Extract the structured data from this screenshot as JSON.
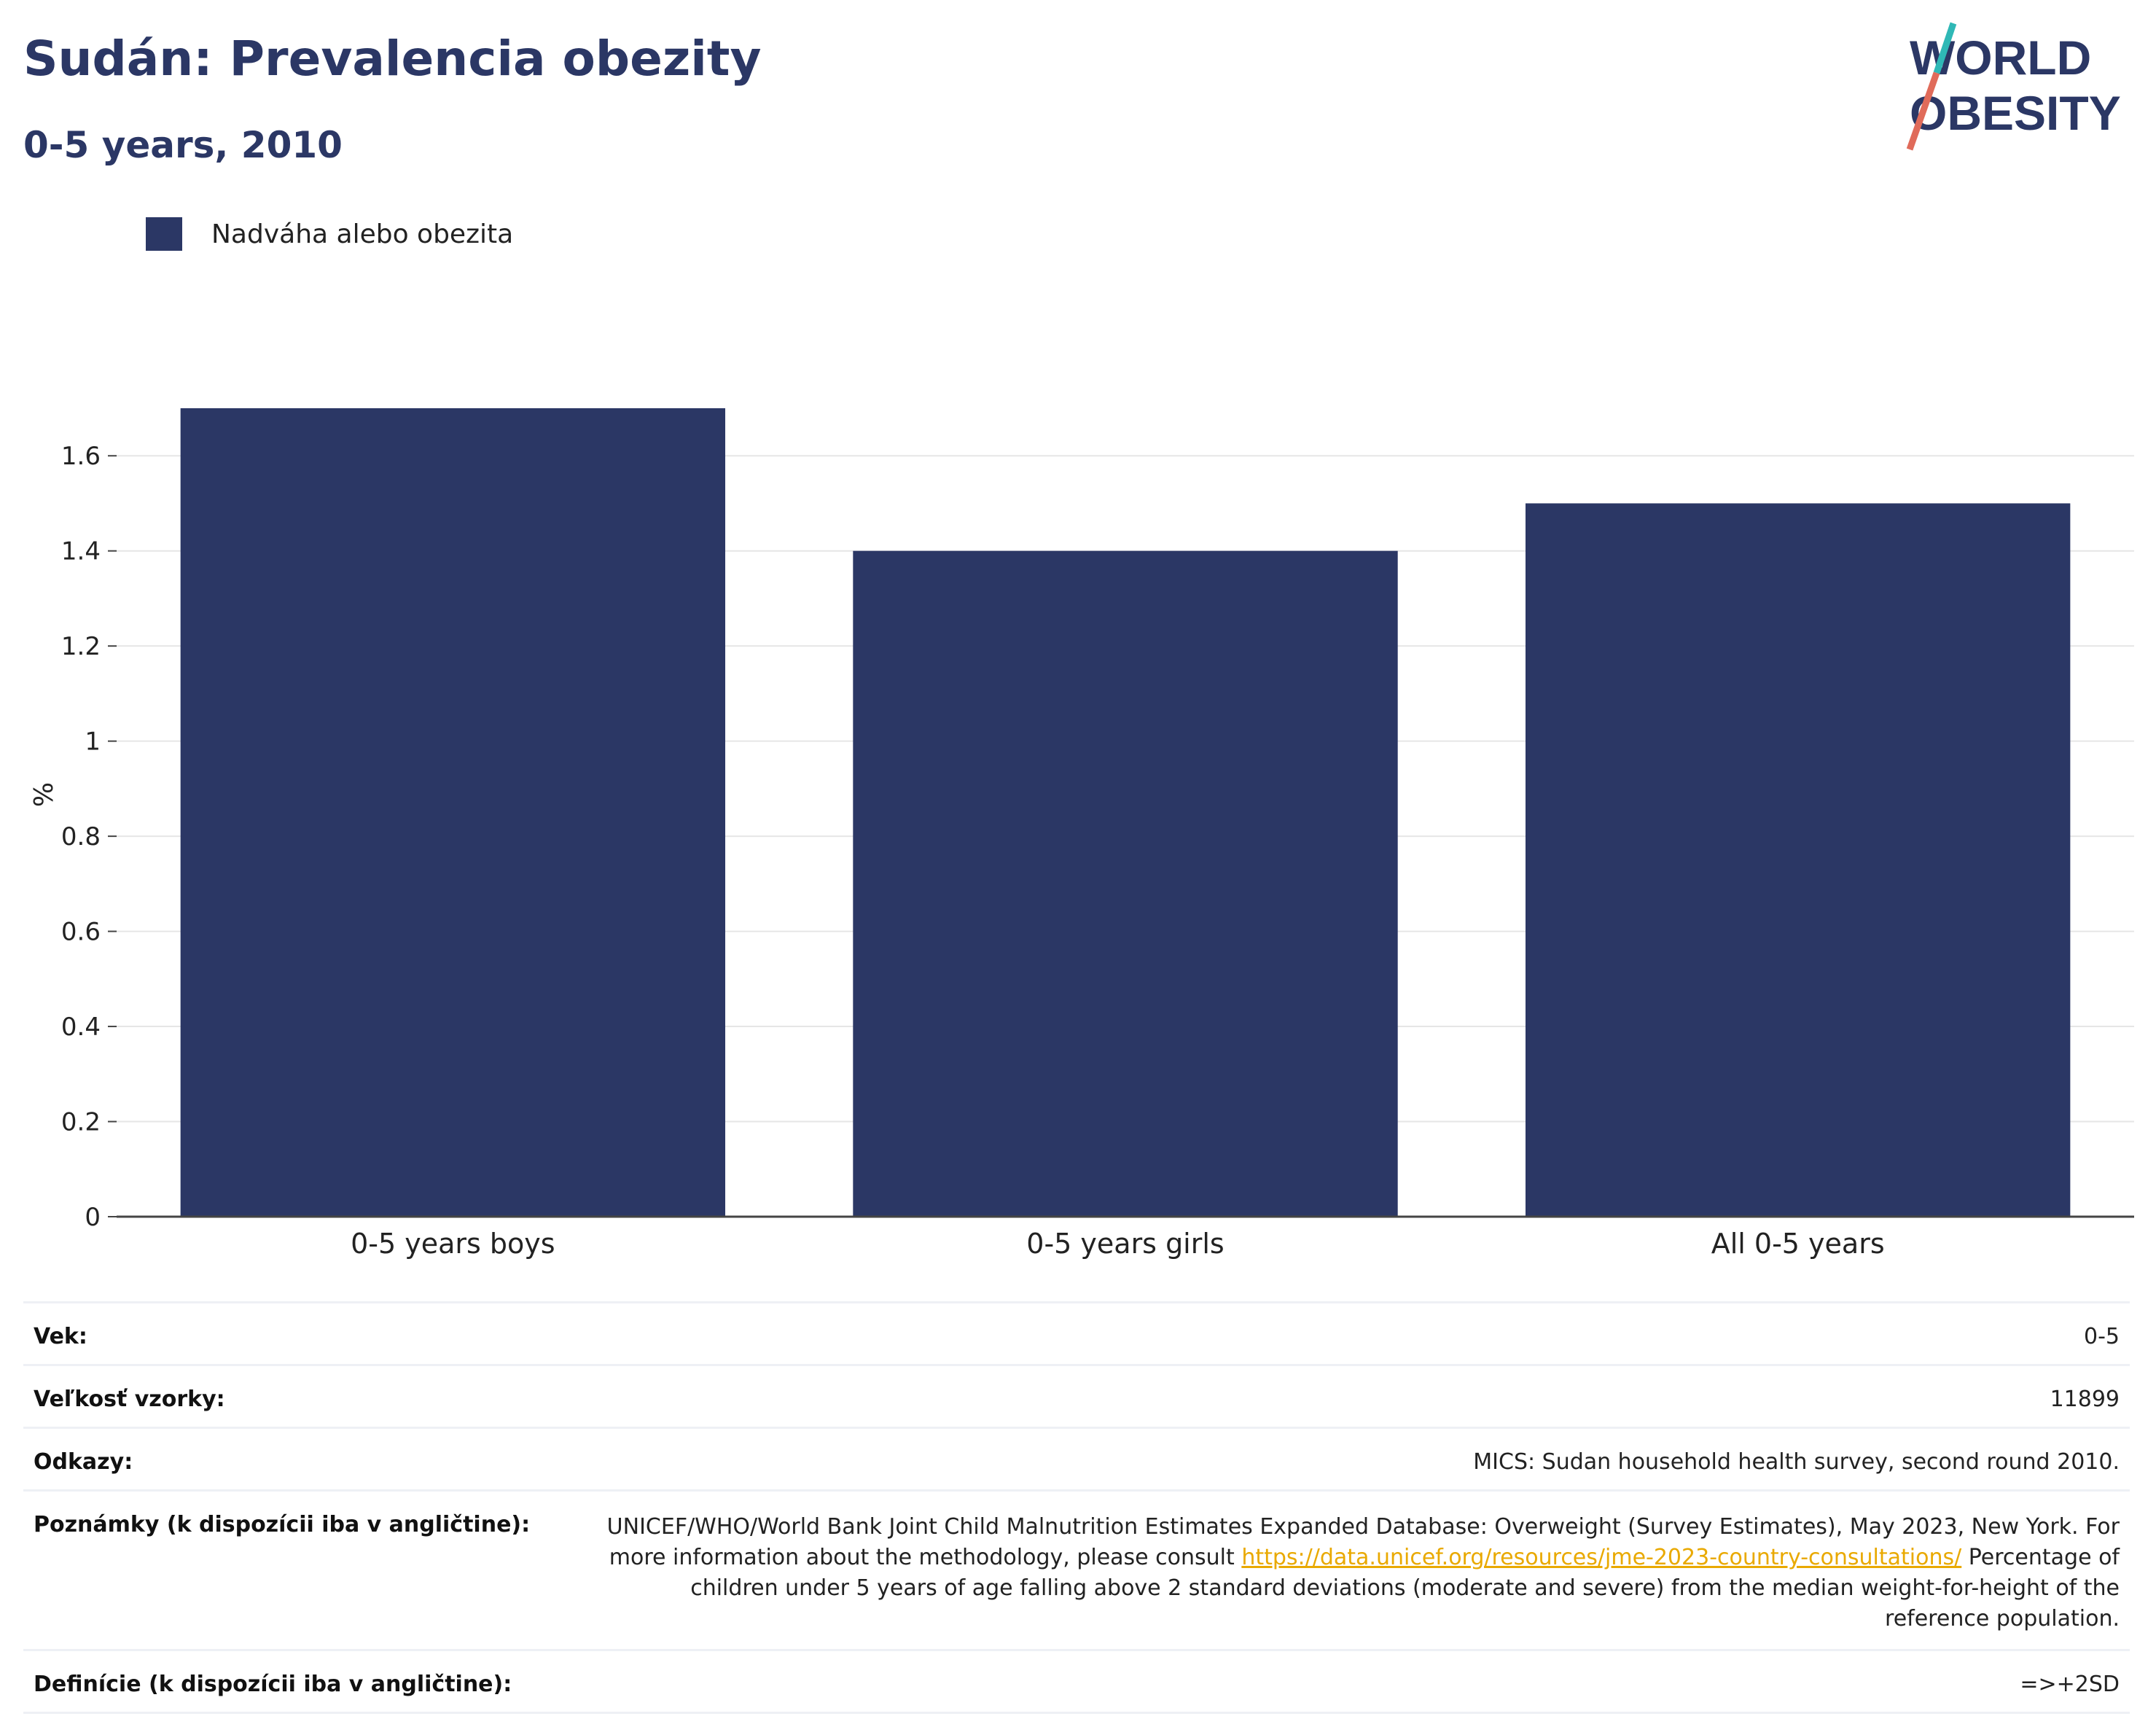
{
  "header": {
    "title": "Sudán: Prevalencia obezity",
    "subtitle": "0-5 years, 2010"
  },
  "logo": {
    "line1": "WORLD",
    "line2": "OBESITY"
  },
  "legend": {
    "label": "Nadváha alebo obezita",
    "color": "#2b3765"
  },
  "chart_data": {
    "type": "bar",
    "categories": [
      "0-5 years boys",
      "0-5 years girls",
      "All 0-5 years"
    ],
    "series": [
      {
        "name": "Nadváha alebo obezita",
        "values": [
          1.7,
          1.4,
          1.5
        ],
        "color": "#2b3765"
      }
    ],
    "ylabel": "%",
    "xlabel": "",
    "ylim": [
      0,
      1.7
    ],
    "yticks": [
      0,
      0.2,
      0.4,
      0.6,
      0.8,
      1,
      1.2,
      1.4,
      1.6
    ],
    "ytick_labels": [
      "0",
      "0.2",
      "0.4",
      "0.6",
      "0.8",
      "1",
      "1.2",
      "1.4",
      "1.6"
    ],
    "grid": true,
    "legend_position": "top-left"
  },
  "info": {
    "age": {
      "label": "Vek:",
      "value": "0-5"
    },
    "sample": {
      "label": "Veľkosť vzorky:",
      "value": "11899"
    },
    "refs": {
      "label": "Odkazy:",
      "value": "MICS: Sudan household health survey, second round 2010."
    },
    "notes": {
      "label": "Poznámky (k dispozícii iba v angličtine):",
      "text1": "UNICEF/WHO/World Bank Joint Child Malnutrition Estimates Expanded Database: Overweight (Survey Estimates), May 2023, New York. For more information about the methodology, please consult",
      "link": "https://data.unicef.org/resources/jme-2023-country-consultations/",
      "text2": "Percentage of children under 5 years of age falling above 2 standard deviations (moderate and severe) from the median weight-for-height of the reference population."
    },
    "definitions": {
      "label": "Definície (k dispozícii iba v angličtine):",
      "value": "=>+2SD"
    }
  }
}
